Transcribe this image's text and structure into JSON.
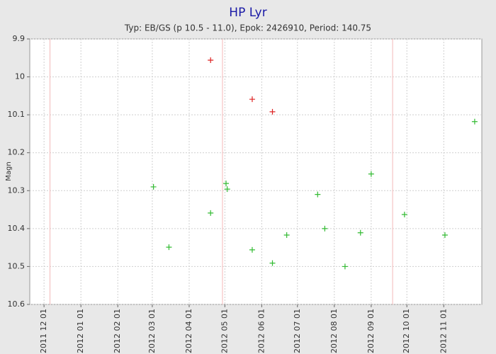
{
  "chart_data": {
    "type": "scatter",
    "title": "HP Lyr",
    "subtitle": "Typ: EB/GS (p 10.5 - 11.0), Epok: 2426910, Period: 140.75",
    "y_label": "Magn",
    "invert_y": true,
    "grid": true,
    "ylim": [
      9.9,
      10.6
    ],
    "yticks": [
      9.9,
      10,
      10.1,
      10.2,
      10.3,
      10.4,
      10.5,
      10.6
    ],
    "xlim": [
      "2011-11-19",
      "2012-12-03"
    ],
    "xticks": [
      {
        "value": "2011-12-01",
        "label": "2011 12 01"
      },
      {
        "value": "2012-01-01",
        "label": "2012 01 01"
      },
      {
        "value": "2012-02-01",
        "label": "2012 02 01"
      },
      {
        "value": "2012-03-01",
        "label": "2012 03 01"
      },
      {
        "value": "2012-04-01",
        "label": "2012 04 01"
      },
      {
        "value": "2012-05-01",
        "label": "2012 05 01"
      },
      {
        "value": "2012-06-01",
        "label": "2012 06 01"
      },
      {
        "value": "2012-07-01",
        "label": "2012 07 01"
      },
      {
        "value": "2012-08-01",
        "label": "2012 08 01"
      },
      {
        "value": "2012-09-01",
        "label": "2012 09 01"
      },
      {
        "value": "2012-10-01",
        "label": "2012 10 01"
      },
      {
        "value": "2012-11-01",
        "label": "2012 11 01"
      }
    ],
    "vlines": [
      "2011-12-06",
      "2012-04-29",
      "2012-09-19"
    ],
    "vline_color": "#f4b8b8",
    "series": [
      {
        "color": "#dd2222",
        "x": [
          "2012-04-19",
          "2012-05-24",
          "2012-06-10"
        ],
        "values": [
          9.956,
          10.059,
          10.092
        ]
      },
      {
        "color": "#33bb33",
        "x": [
          "2012-03-02",
          "2012-03-15",
          "2012-04-19",
          "2012-05-02",
          "2012-05-03",
          "2012-05-24",
          "2012-06-10",
          "2012-06-22",
          "2012-07-18",
          "2012-07-24",
          "2012-08-10",
          "2012-08-23",
          "2012-09-01",
          "2012-09-29",
          "2012-11-02",
          "2012-11-27"
        ],
        "values": [
          10.29,
          10.449,
          10.359,
          10.281,
          10.296,
          10.456,
          10.491,
          10.417,
          10.31,
          10.4,
          10.5,
          10.411,
          10.256,
          10.363,
          10.417,
          10.118
        ]
      }
    ]
  }
}
